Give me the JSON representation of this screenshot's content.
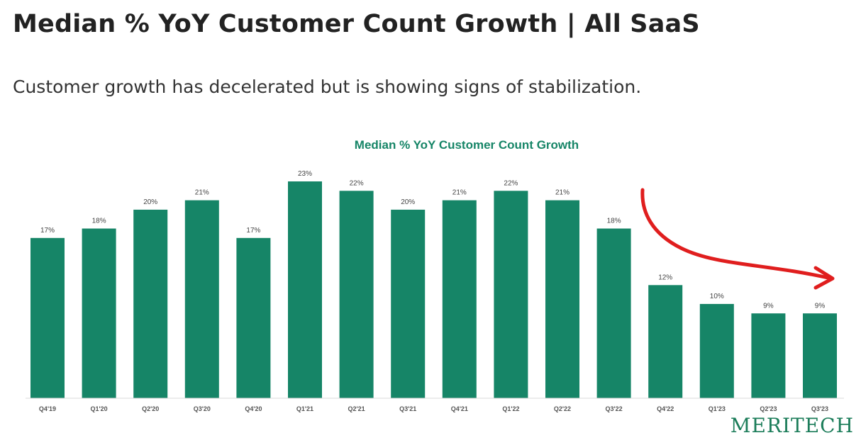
{
  "page": {
    "title": "Median % YoY Customer Count Growth | All SaaS",
    "subtitle": "Customer growth has decelerated but is showing signs of stabilization."
  },
  "brand": {
    "logo_text": "MERITECH",
    "color": "#1c7d5a"
  },
  "chart_data": {
    "type": "bar",
    "title": "Median % YoY Customer Count Growth",
    "categories": [
      "Q4'19",
      "Q1'20",
      "Q2'20",
      "Q3'20",
      "Q4'20",
      "Q1'21",
      "Q2'21",
      "Q3'21",
      "Q4'21",
      "Q1'22",
      "Q2'22",
      "Q3'22",
      "Q4'22",
      "Q1'23",
      "Q2'23",
      "Q3'23"
    ],
    "values": [
      17,
      18,
      20,
      21,
      17,
      23,
      22,
      20,
      21,
      22,
      21,
      18,
      12,
      10,
      9,
      9
    ],
    "data_labels": [
      "17%",
      "18%",
      "20%",
      "21%",
      "17%",
      "23%",
      "22%",
      "20%",
      "21%",
      "22%",
      "21%",
      "18%",
      "12%",
      "10%",
      "9%",
      "9%"
    ],
    "xlabel": "",
    "ylabel": "",
    "ylim": [
      0,
      23
    ],
    "grid": false,
    "bar_color": "#168567",
    "title_color": "#168567",
    "annotation_color": "#e01e1e",
    "annotation": "hand-drawn-arrow"
  }
}
